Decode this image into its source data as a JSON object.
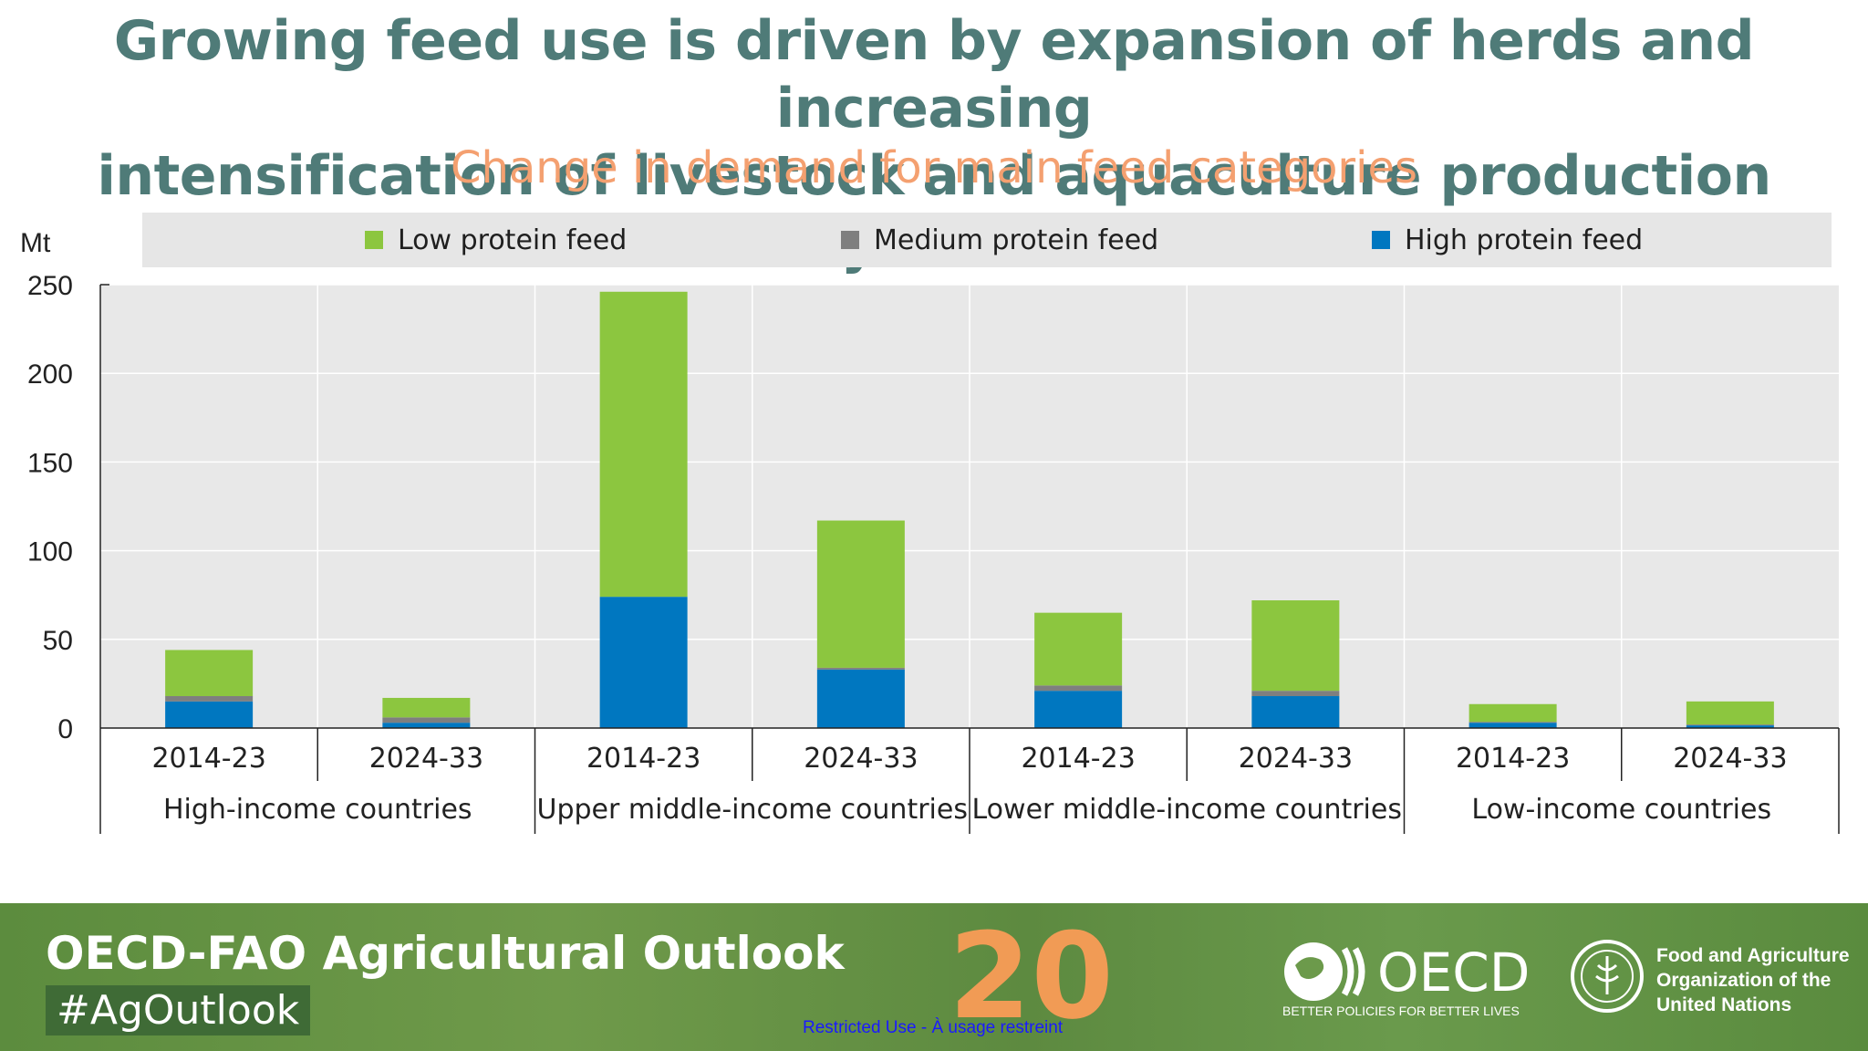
{
  "header": {
    "title_line1": "Growing feed use is driven by expansion of herds and increasing",
    "title_line2": "intensification of livestock and aquaculture production systems",
    "subtitle": "Change in demand for main feed categories"
  },
  "chart_data": {
    "type": "bar",
    "stacked": true,
    "unit": "Mt",
    "ylim": [
      0,
      250
    ],
    "yticks": [
      0,
      50,
      100,
      150,
      200,
      250
    ],
    "grid": true,
    "legend": "top",
    "categories": [
      "2014-23",
      "2024-33",
      "2014-23",
      "2024-33",
      "2014-23",
      "2024-33",
      "2014-23",
      "2024-33"
    ],
    "groups": [
      {
        "label": "High-income countries",
        "span": 2
      },
      {
        "label": "Upper middle-income countries",
        "span": 2
      },
      {
        "label": "Lower middle-income countries",
        "span": 2
      },
      {
        "label": "Low-income countries",
        "span": 2
      }
    ],
    "series": [
      {
        "name": "High protein feed",
        "color": "#0077c0",
        "values": [
          15,
          3,
          74,
          33,
          21,
          18,
          3,
          1.5
        ]
      },
      {
        "name": "Medium protein feed",
        "color": "#7f7f7f",
        "values": [
          3,
          3,
          0,
          1,
          3,
          3,
          0.5,
          0.5
        ]
      },
      {
        "name": "Low protein feed",
        "color": "#8cc63f",
        "values": [
          26,
          11,
          172,
          83,
          41,
          51,
          10,
          13
        ]
      }
    ],
    "legend_order": [
      "Low protein feed",
      "Medium protein feed",
      "High protein feed"
    ]
  },
  "footer": {
    "title": "OECD-FAO Agricultural Outlook",
    "hashtag": "#AgOutlook",
    "restricted": "Restricted Use - À usage restreint",
    "oecd": "OECD",
    "oecd_tagline": "BETTER POLICIES FOR BETTER LIVES",
    "fao_line1": "Food and Agriculture",
    "fao_line2": "Organization of the",
    "fao_line3": "United Nations",
    "anniversary": "20",
    "background_color": "#5f8f42"
  }
}
